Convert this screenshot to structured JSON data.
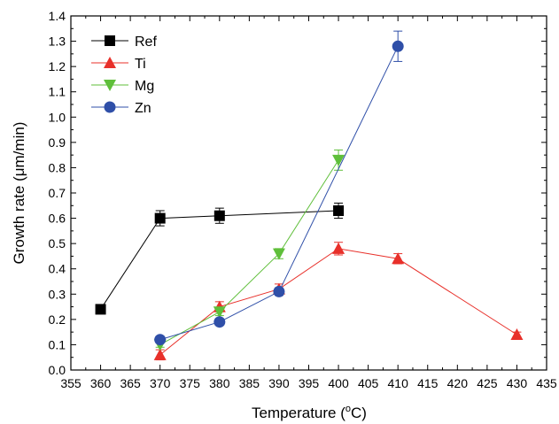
{
  "chart_data": {
    "type": "line",
    "xlabel": "Temperature (",
    "xlabel_sup": "o",
    "xlabel_suffix": "C)",
    "ylabel": "Growth rate (μm/min)",
    "xlim": [
      355,
      435
    ],
    "ylim": [
      0.0,
      1.4
    ],
    "xticks": [
      355,
      360,
      365,
      370,
      375,
      380,
      385,
      390,
      395,
      400,
      405,
      410,
      415,
      420,
      425,
      430,
      435
    ],
    "xtick_labels": [
      "355",
      "360",
      "365",
      "370",
      "375",
      "380",
      "385",
      "390",
      "395",
      "400",
      "405",
      "410",
      "415",
      "420",
      "425",
      "430",
      "435"
    ],
    "yticks": [
      0.0,
      0.1,
      0.2,
      0.3,
      0.4,
      0.5,
      0.6,
      0.7,
      0.8,
      0.9,
      1.0,
      1.1,
      1.2,
      1.3,
      1.4
    ],
    "ytick_labels": [
      "0.0",
      "0.1",
      "0.2",
      "0.3",
      "0.4",
      "0.5",
      "0.6",
      "0.7",
      "0.8",
      "0.9",
      "1.0",
      "1.1",
      "1.2",
      "1.3",
      "1.4"
    ],
    "grid": false,
    "legend_position": "top-left",
    "series": [
      {
        "name": "Ref",
        "color": "#000000",
        "marker": "square",
        "x": [
          360,
          370,
          380,
          400
        ],
        "y": [
          0.24,
          0.6,
          0.61,
          0.63
        ],
        "err": [
          0,
          0.03,
          0.03,
          0.03
        ]
      },
      {
        "name": "Ti",
        "color": "#e8302a",
        "marker": "triangle-up",
        "x": [
          370,
          380,
          390,
          400,
          410,
          430
        ],
        "y": [
          0.06,
          0.25,
          0.32,
          0.48,
          0.44,
          0.14
        ],
        "err": [
          0.02,
          0.02,
          0.02,
          0.025,
          0.02,
          0.01
        ]
      },
      {
        "name": "Mg",
        "color": "#5fbf3a",
        "marker": "triangle-down",
        "x": [
          370,
          380,
          390,
          400
        ],
        "y": [
          0.1,
          0.23,
          0.46,
          0.83
        ],
        "err": [
          0.01,
          0.015,
          0.02,
          0.04
        ]
      },
      {
        "name": "Zn",
        "color": "#2f4fa8",
        "marker": "circle",
        "x": [
          370,
          380,
          390,
          410
        ],
        "y": [
          0.12,
          0.19,
          0.31,
          1.28
        ],
        "err": [
          0.01,
          0.01,
          0.015,
          0.06
        ]
      }
    ]
  }
}
